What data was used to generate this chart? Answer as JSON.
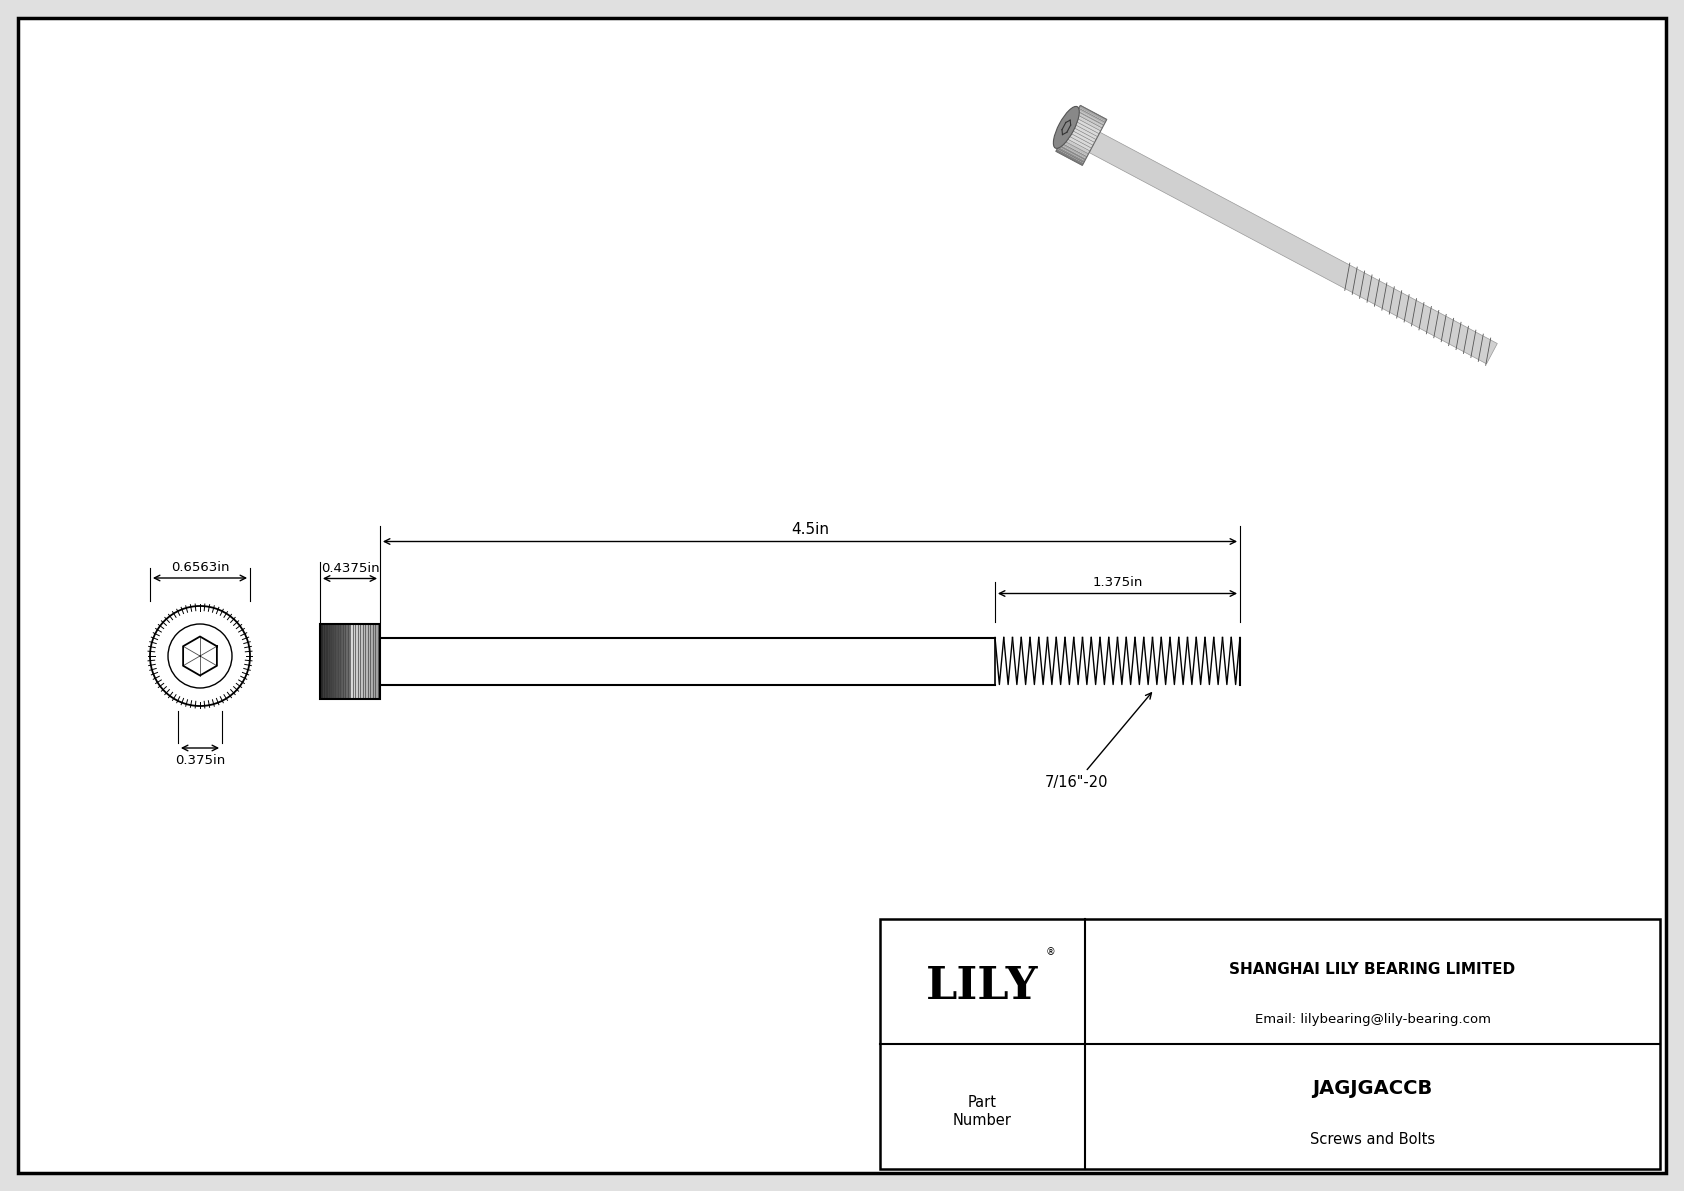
{
  "bg_color": "#e8e8e8",
  "line_color": "#000000",
  "title": "JAGJGACCB",
  "subtitle": "Screws and Bolts",
  "company": "SHANGHAI LILY BEARING LIMITED",
  "email": "Email: lilybearing@lily-bearing.com",
  "part_label": "Part\nNumber",
  "dim_head_diameter": "0.6563in",
  "dim_head_width": "0.4375in",
  "dim_shank_length": "4.5in",
  "dim_thread_length": "1.375in",
  "dim_head_height": "0.375in",
  "dim_thread_spec": "7/16\"-20",
  "logo_text": "LILY",
  "page_bg": "#e0e0e0",
  "drawing_bg": "#ffffff"
}
